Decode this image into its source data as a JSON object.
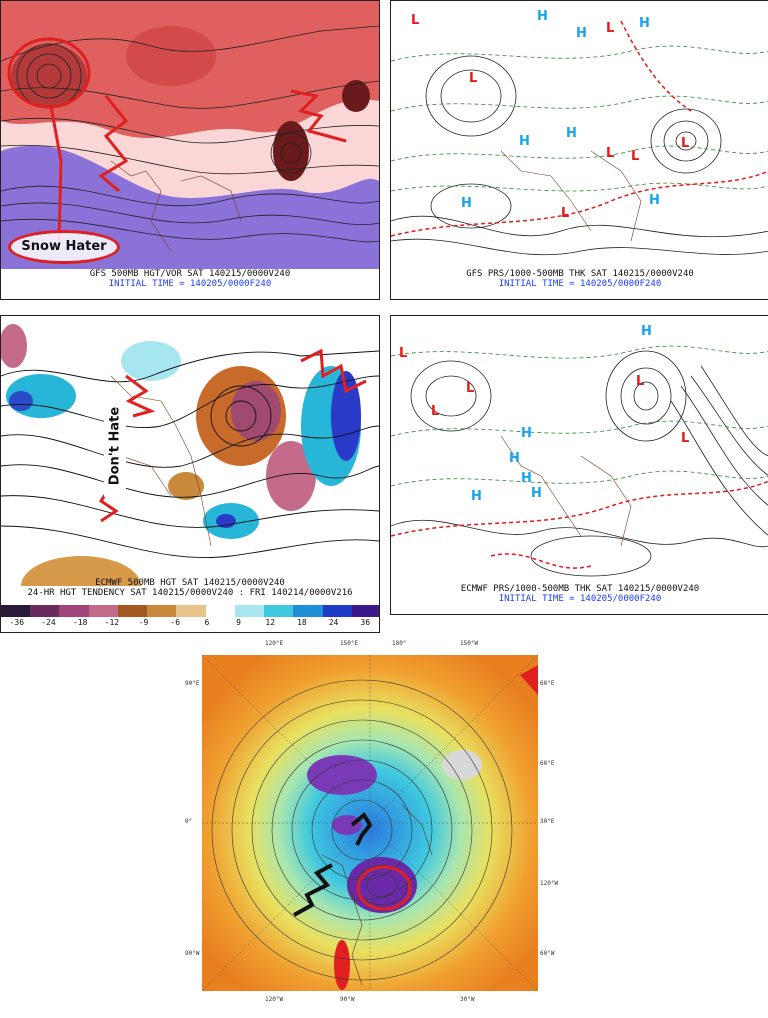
{
  "panels": {
    "gfs_500": {
      "caption1": "GFS 500MB HGT/VOR SAT 140215/0000V240",
      "caption2": "INITIAL TIME = 140205/0000F240",
      "annotation": "Snow Hater"
    },
    "gfs_prs": {
      "caption1": "GFS PRS/1000-500MB THK SAT 140215/0000V240",
      "caption2": "INITIAL TIME = 140205/0000F240",
      "labels": [
        "H",
        "H",
        "L",
        "L",
        "H",
        "L",
        "L",
        "H",
        "H",
        "L",
        "H",
        "H",
        "L",
        "L"
      ]
    },
    "ecmwf_500": {
      "caption1": "ECMWF 500MB HGT SAT 140215/0000V240",
      "caption2": "24-HR HGT TENDENCY SAT 140215/0000V240 : FRI 140214/0000V216",
      "annotation": "Don't Hate",
      "colorbar_labels": [
        "-36",
        "-24",
        "-18",
        "-12",
        "-9",
        "-6",
        "6",
        "9",
        "12",
        "18",
        "24",
        "36"
      ],
      "colorbar_colors": [
        "#2a1a3a",
        "#6b2a5e",
        "#a0447a",
        "#c46a8a",
        "#a25a20",
        "#c88a3a",
        "#e9c48a",
        "#ffffff",
        "#a8e6ef",
        "#3fc8e0",
        "#1e90d8",
        "#1c3cc8",
        "#3a1a8a"
      ]
    },
    "ecmwf_prs": {
      "caption1": "ECMWF PRS/1000-500MB THK SAT 140215/0000V240",
      "caption2": "INITIAL TIME = 140205/0000F240",
      "labels": [
        "H",
        "L",
        "L",
        "L",
        "L",
        "H",
        "H",
        "H",
        "H",
        "H",
        "L"
      ]
    },
    "polar": {
      "tick_labels": [
        "120°E",
        "150°E",
        "180°",
        "150°W",
        "120°W",
        "90°E",
        "60°E",
        "90°W",
        "60°W",
        "30°W",
        "0°",
        "30°E",
        "60°E",
        "90°W",
        "120°W"
      ]
    }
  },
  "colors": {
    "annotation_red": "#e02020",
    "high_blue": "#19a6e8",
    "low_red": "#e41a1a",
    "caption_blue": "#1a3cff"
  }
}
